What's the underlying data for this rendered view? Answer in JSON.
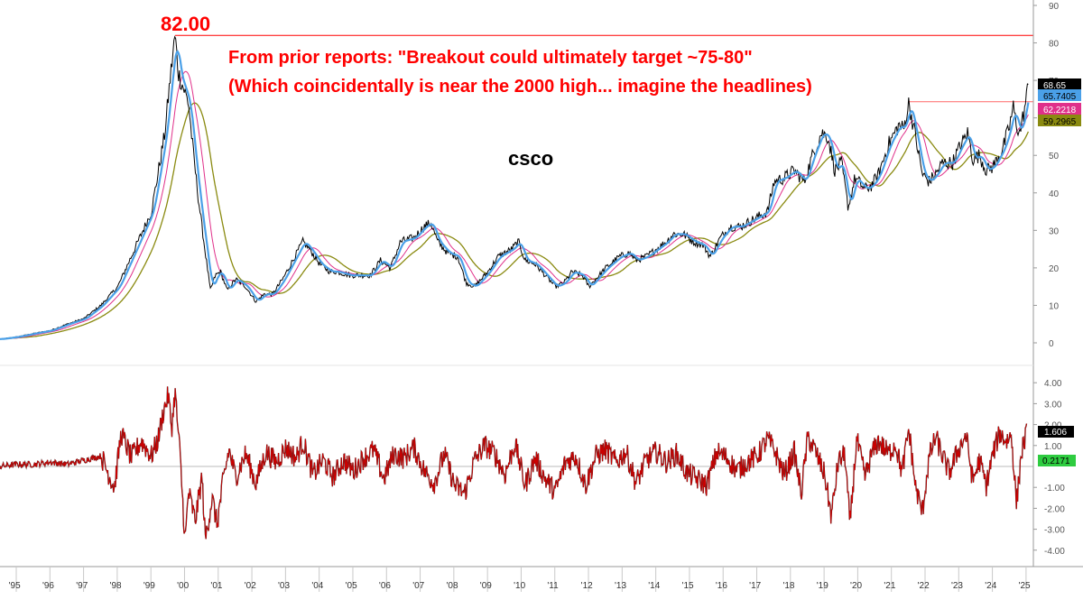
{
  "annotations": {
    "peak_label": "82.00",
    "note_line1": "From prior reports: \"Breakout could ultimately target ~75-80\"",
    "note_line2": "(Which coincidentally is near the 2000 high... imagine the headlines)",
    "ticker": "csco"
  },
  "chart_data": [
    {
      "type": "line",
      "title": "csco",
      "series": [
        {
          "name": "price",
          "color": "#000000",
          "points": [
            [
              1995.0,
              1.0
            ],
            [
              1995.5,
              1.6
            ],
            [
              1996.0,
              2.5
            ],
            [
              1996.5,
              3.3
            ],
            [
              1997.0,
              5.0
            ],
            [
              1997.5,
              6.5
            ],
            [
              1998.0,
              10
            ],
            [
              1998.5,
              15
            ],
            [
              1999.0,
              25
            ],
            [
              1999.5,
              35
            ],
            [
              1999.9,
              56
            ],
            [
              2000.05,
              70
            ],
            [
              2000.2,
              82
            ],
            [
              2000.3,
              72
            ],
            [
              2000.45,
              68
            ],
            [
              2000.6,
              64
            ],
            [
              2000.75,
              50
            ],
            [
              2000.9,
              38
            ],
            [
              2001.1,
              24
            ],
            [
              2001.25,
              14
            ],
            [
              2001.4,
              18
            ],
            [
              2001.55,
              19
            ],
            [
              2001.75,
              14
            ],
            [
              2002.0,
              17
            ],
            [
              2002.3,
              15
            ],
            [
              2002.6,
              11
            ],
            [
              2002.85,
              13
            ],
            [
              2003.1,
              13
            ],
            [
              2003.4,
              17
            ],
            [
              2003.7,
              22
            ],
            [
              2004.0,
              27
            ],
            [
              2004.2,
              25
            ],
            [
              2004.5,
              21
            ],
            [
              2004.8,
              19
            ],
            [
              2005.0,
              19
            ],
            [
              2005.4,
              18
            ],
            [
              2005.7,
              18
            ],
            [
              2006.0,
              18
            ],
            [
              2006.3,
              22
            ],
            [
              2006.6,
              20
            ],
            [
              2006.9,
              27
            ],
            [
              2007.3,
              28
            ],
            [
              2007.6,
              31
            ],
            [
              2007.8,
              32
            ],
            [
              2008.0,
              27
            ],
            [
              2008.3,
              24
            ],
            [
              2008.6,
              23
            ],
            [
              2008.85,
              16
            ],
            [
              2009.1,
              15
            ],
            [
              2009.5,
              19
            ],
            [
              2009.8,
              23
            ],
            [
              2010.2,
              25
            ],
            [
              2010.4,
              27
            ],
            [
              2010.6,
              22
            ],
            [
              2010.9,
              21
            ],
            [
              2011.2,
              18
            ],
            [
              2011.5,
              15
            ],
            [
              2011.75,
              16
            ],
            [
              2012.0,
              19
            ],
            [
              2012.3,
              18
            ],
            [
              2012.5,
              15
            ],
            [
              2012.8,
              18
            ],
            [
              2013.0,
              20
            ],
            [
              2013.4,
              23
            ],
            [
              2013.7,
              24
            ],
            [
              2013.9,
              22
            ],
            [
              2014.2,
              23
            ],
            [
              2014.5,
              25
            ],
            [
              2014.8,
              27
            ],
            [
              2015.0,
              29
            ],
            [
              2015.3,
              29
            ],
            [
              2015.6,
              27
            ],
            [
              2015.9,
              26
            ],
            [
              2016.1,
              23
            ],
            [
              2016.4,
              28
            ],
            [
              2016.7,
              31
            ],
            [
              2017.0,
              31
            ],
            [
              2017.4,
              33
            ],
            [
              2017.8,
              35
            ],
            [
              2018.0,
              43
            ],
            [
              2018.3,
              44
            ],
            [
              2018.6,
              46
            ],
            [
              2018.9,
              43
            ],
            [
              2019.1,
              49
            ],
            [
              2019.4,
              56
            ],
            [
              2019.6,
              55
            ],
            [
              2019.8,
              46
            ],
            [
              2020.0,
              48
            ],
            [
              2020.2,
              36
            ],
            [
              2020.4,
              44
            ],
            [
              2020.7,
              41
            ],
            [
              2020.9,
              42
            ],
            [
              2021.1,
              45
            ],
            [
              2021.4,
              53
            ],
            [
              2021.7,
              58
            ],
            [
              2021.85,
              57
            ],
            [
              2022.0,
              64
            ],
            [
              2022.2,
              55
            ],
            [
              2022.4,
              45
            ],
            [
              2022.6,
              43
            ],
            [
              2022.8,
              45
            ],
            [
              2023.0,
              48
            ],
            [
              2023.3,
              48
            ],
            [
              2023.5,
              52
            ],
            [
              2023.75,
              56
            ],
            [
              2023.9,
              49
            ],
            [
              2024.1,
              50
            ],
            [
              2024.3,
              46
            ],
            [
              2024.5,
              47
            ],
            [
              2024.8,
              52
            ],
            [
              2025.0,
              58
            ],
            [
              2025.1,
              63
            ],
            [
              2025.2,
              58
            ],
            [
              2025.3,
              56
            ],
            [
              2025.45,
              63
            ],
            [
              2025.55,
              68.65
            ]
          ]
        },
        {
          "name": "ma-blue",
          "color": "#4aa0e8",
          "last_value": "65.7405"
        },
        {
          "name": "ma-pink",
          "color": "#e0308a",
          "last_value": "62.2218"
        },
        {
          "name": "ma-olive",
          "color": "#8a8a10",
          "last_value": "59.2965"
        }
      ],
      "last_price": "68.65",
      "ylim": [
        -4,
        90
      ],
      "y_ticks": [
        "0",
        "10",
        "20",
        "30",
        "40",
        "50",
        "60",
        "70",
        "80",
        "90"
      ],
      "x_ticks": [
        "'95",
        "'96",
        "'97",
        "'98",
        "'99",
        "'00",
        "'01",
        "'02",
        "'03",
        "'04",
        "'05",
        "'06",
        "'07",
        "'08",
        "'09",
        "'10",
        "'11",
        "'12",
        "'13",
        "'14",
        "'15",
        "'16",
        "'17",
        "'18",
        "'19",
        "'20",
        "'21",
        "'22",
        "'23",
        "'24",
        "'25"
      ],
      "reference_lines": [
        {
          "value": 82,
          "label": "82.00",
          "color": "#ff0000"
        },
        {
          "value": 64.3,
          "color": "#ff0000",
          "from_x": 2022.0
        }
      ]
    },
    {
      "type": "line",
      "title": "",
      "series": [
        {
          "name": "oscillator",
          "color": "#cc0000",
          "points": [
            [
              1995.0,
              0.0
            ],
            [
              1995.5,
              0.1
            ],
            [
              1996.0,
              0.1
            ],
            [
              1996.5,
              0.2
            ],
            [
              1997.0,
              0.1
            ],
            [
              1997.5,
              0.3
            ],
            [
              1998.0,
              0.5
            ],
            [
              1998.4,
              -1.0
            ],
            [
              1998.6,
              1.6
            ],
            [
              1998.9,
              0.4
            ],
            [
              1999.2,
              1.2
            ],
            [
              1999.5,
              0.5
            ],
            [
              1999.7,
              1.3
            ],
            [
              1999.85,
              2.6
            ],
            [
              2000.0,
              3.4
            ],
            [
              2000.1,
              1.8
            ],
            [
              2000.2,
              3.6
            ],
            [
              2000.35,
              0.5
            ],
            [
              2000.5,
              -3.6
            ],
            [
              2000.6,
              -1.2
            ],
            [
              2000.8,
              -2.6
            ],
            [
              2001.0,
              -0.5
            ],
            [
              2001.1,
              -3.5
            ],
            [
              2001.3,
              -1.5
            ],
            [
              2001.45,
              -2.8
            ],
            [
              2001.6,
              -1.0
            ],
            [
              2001.8,
              0.8
            ],
            [
              2002.0,
              -0.5
            ],
            [
              2002.3,
              0.6
            ],
            [
              2002.6,
              -0.8
            ],
            [
              2002.9,
              0.7
            ],
            [
              2003.2,
              0.2
            ],
            [
              2003.5,
              0.9
            ],
            [
              2003.8,
              0.4
            ],
            [
              2004.0,
              1.2
            ],
            [
              2004.3,
              -0.4
            ],
            [
              2004.6,
              0.3
            ],
            [
              2004.9,
              -0.5
            ],
            [
              2005.2,
              0.3
            ],
            [
              2005.5,
              -0.2
            ],
            [
              2005.8,
              0.4
            ],
            [
              2006.1,
              0.8
            ],
            [
              2006.4,
              -0.6
            ],
            [
              2006.7,
              0.6
            ],
            [
              2007.0,
              0.4
            ],
            [
              2007.3,
              0.9
            ],
            [
              2007.6,
              -0.2
            ],
            [
              2007.9,
              -0.8
            ],
            [
              2008.2,
              0.6
            ],
            [
              2008.5,
              -0.9
            ],
            [
              2008.8,
              -1.3
            ],
            [
              2009.1,
              0.3
            ],
            [
              2009.4,
              1.0
            ],
            [
              2009.7,
              0.6
            ],
            [
              2010.0,
              -0.4
            ],
            [
              2010.3,
              1.1
            ],
            [
              2010.6,
              -0.9
            ],
            [
              2010.9,
              0.4
            ],
            [
              2011.2,
              -0.6
            ],
            [
              2011.5,
              -1.2
            ],
            [
              2011.8,
              0.2
            ],
            [
              2012.1,
              0.5
            ],
            [
              2012.4,
              -0.9
            ],
            [
              2012.7,
              0.5
            ],
            [
              2013.0,
              0.8
            ],
            [
              2013.3,
              0.2
            ],
            [
              2013.6,
              0.7
            ],
            [
              2013.9,
              -0.8
            ],
            [
              2014.2,
              0.3
            ],
            [
              2014.5,
              0.7
            ],
            [
              2014.8,
              0.2
            ],
            [
              2015.1,
              0.6
            ],
            [
              2015.4,
              -0.3
            ],
            [
              2015.7,
              -0.6
            ],
            [
              2016.0,
              -0.9
            ],
            [
              2016.3,
              0.7
            ],
            [
              2016.6,
              0.4
            ],
            [
              2016.9,
              -0.2
            ],
            [
              2017.2,
              0.2
            ],
            [
              2017.5,
              0.5
            ],
            [
              2017.8,
              1.3
            ],
            [
              2018.0,
              0.8
            ],
            [
              2018.3,
              -0.4
            ],
            [
              2018.6,
              0.7
            ],
            [
              2018.8,
              -1.3
            ],
            [
              2019.0,
              1.4
            ],
            [
              2019.2,
              0.8
            ],
            [
              2019.5,
              -0.4
            ],
            [
              2019.7,
              -2.4
            ],
            [
              2019.9,
              0.2
            ],
            [
              2020.1,
              0.6
            ],
            [
              2020.25,
              -2.8
            ],
            [
              2020.45,
              1.3
            ],
            [
              2020.7,
              -0.5
            ],
            [
              2020.9,
              0.6
            ],
            [
              2021.1,
              1.2
            ],
            [
              2021.4,
              0.6
            ],
            [
              2021.6,
              1.1
            ],
            [
              2021.8,
              -0.3
            ],
            [
              2022.0,
              1.8
            ],
            [
              2022.2,
              -1.0
            ],
            [
              2022.4,
              -2.2
            ],
            [
              2022.6,
              0.4
            ],
            [
              2022.8,
              1.4
            ],
            [
              2023.0,
              0.5
            ],
            [
              2023.2,
              -0.3
            ],
            [
              2023.5,
              0.9
            ],
            [
              2023.7,
              1.5
            ],
            [
              2023.9,
              -0.7
            ],
            [
              2024.1,
              0.3
            ],
            [
              2024.3,
              -0.9
            ],
            [
              2024.5,
              0.6
            ],
            [
              2024.7,
              1.6
            ],
            [
              2024.9,
              1.2
            ],
            [
              2025.05,
              1.5
            ],
            [
              2025.2,
              -1.8
            ],
            [
              2025.35,
              0.7
            ],
            [
              2025.5,
              1.6
            ]
          ]
        },
        {
          "name": "signal",
          "color": "#2ecc40",
          "last_value": "0.2171"
        }
      ],
      "last_value": "1.606",
      "ylim": [
        -4.8,
        4.3
      ],
      "y_ticks": [
        "4.00",
        "3.00",
        "2.00",
        "1.00",
        "-1.00",
        "-2.00",
        "-3.00",
        "-4.00"
      ]
    }
  ],
  "colors": {
    "background": "#ffffff",
    "accent": "#ff0000",
    "grid": "#d8d8d8",
    "axis_text": "#555555"
  }
}
